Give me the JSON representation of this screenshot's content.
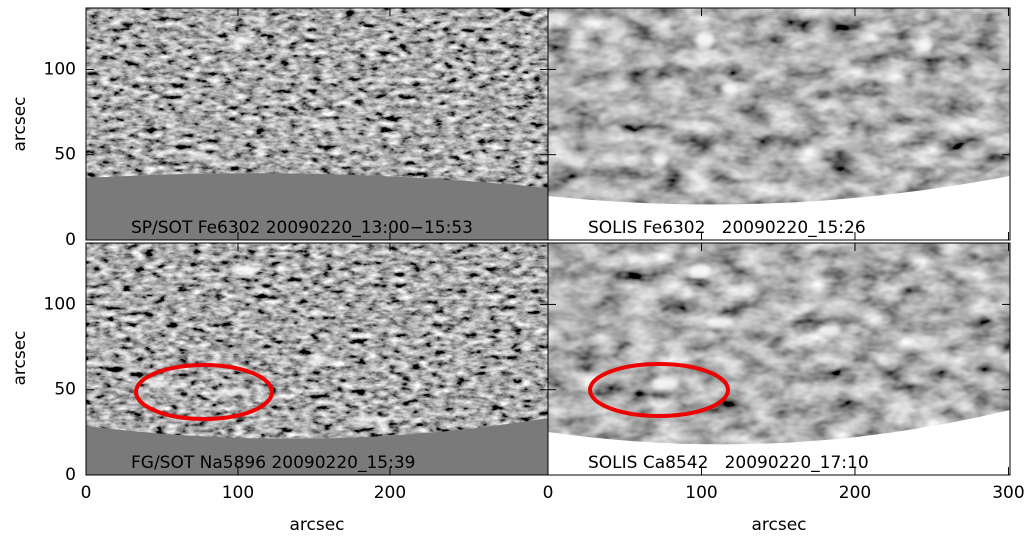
{
  "figure": {
    "x_label": "arcsec",
    "y_label": "arcsec",
    "panels": [
      {
        "label": "SP/SOT Fe6302 20090220_13:00−15:53",
        "xlim": [
          0,
          304
        ],
        "xticks": [
          0,
          100,
          200
        ],
        "ylim": [
          0,
          136
        ],
        "yticks": [
          0,
          50,
          100
        ],
        "x_tick_labels": false,
        "y_tick_labels": true
      },
      {
        "label": "SOLIS Fe6302   20090220_15:26",
        "xlim": [
          0,
          301
        ],
        "xticks": [
          0,
          100,
          200,
          300
        ],
        "ylim": [
          0,
          136
        ],
        "yticks": [
          0,
          50,
          100
        ],
        "x_tick_labels": false,
        "y_tick_labels": false
      },
      {
        "label": "FG/SOT Na5896 20090220_15:39",
        "xlim": [
          0,
          304
        ],
        "xticks": [
          0,
          100,
          200
        ],
        "ylim": [
          0,
          136
        ],
        "yticks": [
          0,
          50,
          100
        ],
        "x_tick_labels": true,
        "y_tick_labels": true
      },
      {
        "label": "SOLIS Ca8542   20090220_17:10",
        "xlim": [
          0,
          301
        ],
        "xticks": [
          0,
          100,
          200,
          300
        ],
        "ylim": [
          0,
          136
        ],
        "yticks": [
          0,
          50,
          100
        ],
        "x_tick_labels": true,
        "y_tick_labels": false
      }
    ]
  }
}
